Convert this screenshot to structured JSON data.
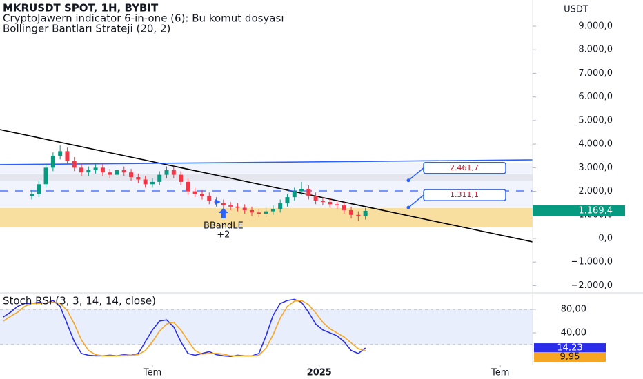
{
  "header": {
    "title": "MKRUSDT SPOT, 1H, BYBIT",
    "indicator": "CryptoJawern indicator 6-in-one  (6): Bu komut dosyası",
    "strategy": "Bollinger Bantları Strateji (20, 2)"
  },
  "chart_data": [
    {
      "type": "candlestick",
      "y_axis_title": "USDT",
      "x": [
        0,
        1,
        2,
        3,
        4,
        5,
        6,
        7,
        8,
        9,
        10,
        11,
        12,
        13,
        14,
        15,
        16,
        17,
        18,
        19,
        20,
        21,
        22,
        23,
        24,
        25,
        26,
        27,
        28,
        29,
        30,
        31,
        32,
        33,
        34,
        35,
        36,
        37,
        38,
        39,
        40,
        41,
        42,
        43,
        44,
        45,
        46,
        47
      ],
      "open": [
        1800,
        1900,
        2300,
        3000,
        3500,
        3700,
        3300,
        3000,
        2800,
        2900,
        3000,
        2800,
        2700,
        2900,
        2800,
        2600,
        2500,
        2300,
        2400,
        2700,
        2900,
        2700,
        2400,
        2000,
        1900,
        1800,
        1600,
        1500,
        1400,
        1350,
        1300,
        1200,
        1100,
        1050,
        1150,
        1250,
        1500,
        1750,
        2000,
        2100,
        1800,
        1600,
        1550,
        1450,
        1400,
        1200,
        1000,
        950
      ],
      "high": [
        2050,
        2450,
        3150,
        3650,
        3950,
        3850,
        3450,
        3150,
        3050,
        3150,
        3150,
        2950,
        3050,
        3050,
        2950,
        2750,
        2650,
        2550,
        2850,
        3050,
        3050,
        2850,
        2550,
        2150,
        2050,
        1950,
        1750,
        1650,
        1550,
        1500,
        1450,
        1350,
        1250,
        1300,
        1400,
        1650,
        1900,
        2150,
        2400,
        2250,
        1950,
        1750,
        1700,
        1600,
        1550,
        1350,
        1150,
        1300
      ],
      "low": [
        1650,
        1750,
        2150,
        2850,
        3350,
        3150,
        2850,
        2650,
        2650,
        2750,
        2650,
        2550,
        2550,
        2650,
        2450,
        2350,
        2150,
        2150,
        2250,
        2550,
        2550,
        2250,
        1850,
        1750,
        1650,
        1450,
        1350,
        1250,
        1200,
        1150,
        1050,
        950,
        900,
        900,
        1000,
        1100,
        1350,
        1600,
        1850,
        1650,
        1450,
        1400,
        1300,
        1250,
        1050,
        850,
        750,
        800
      ],
      "close": [
        1900,
        2300,
        3000,
        3500,
        3700,
        3300,
        3000,
        2800,
        2900,
        3000,
        2800,
        2700,
        2900,
        2800,
        2600,
        2500,
        2300,
        2400,
        2700,
        2900,
        2700,
        2400,
        2000,
        1900,
        1800,
        1600,
        1500,
        1400,
        1350,
        1300,
        1200,
        1100,
        1050,
        1150,
        1250,
        1500,
        1750,
        2000,
        2100,
        1800,
        1600,
        1550,
        1450,
        1400,
        1200,
        1000,
        950,
        1169.4
      ],
      "up_color": "#089981",
      "down_color": "#f23645",
      "last_price": {
        "value": 1169.4,
        "label": "1.169,4"
      },
      "xlim": [
        -4.47,
        70.55
      ],
      "ylim": [
        -2309,
        10111
      ],
      "yticks": [
        {
          "value": 9000,
          "label": "9.000,0"
        },
        {
          "value": 8000,
          "label": "8.000,0"
        },
        {
          "value": 7000,
          "label": "7.000,0"
        },
        {
          "value": 6000,
          "label": "6.000,0"
        },
        {
          "value": 5000,
          "label": "5.000,0"
        },
        {
          "value": 4000,
          "label": "4.000,0"
        },
        {
          "value": 3000,
          "label": "3.000,0"
        },
        {
          "value": 2000,
          "label": "2.000,0"
        },
        {
          "value": 1000,
          "label": "1.000,0"
        },
        {
          "value": 0,
          "label": "0,0"
        },
        {
          "value": -1000,
          "label": "−1.000,0"
        },
        {
          "value": -2000,
          "label": "−2.000,0"
        }
      ],
      "bands": [
        {
          "range": [
            1286,
            3200
          ],
          "color": "#eef2fb"
        },
        {
          "range": [
            2455,
            2718
          ],
          "color": "#e2e2ea"
        },
        {
          "range": [
            468,
            1286
          ],
          "color": "#f8d98e"
        }
      ],
      "trend_lines": [
        {
          "x": [
            -4.47,
            70.55
          ],
          "y": [
            4617,
            -146
          ],
          "color": "#000000",
          "dash": false
        },
        {
          "x": [
            -4.47,
            70.55
          ],
          "y": [
            3127,
            3331
          ],
          "color": "#2962ff",
          "dash": false
        },
        {
          "x": [
            -4.47,
            70.55
          ],
          "y": [
            2016,
            2016
          ],
          "color": "#2962ff",
          "dash": true
        }
      ],
      "levels": [
        {
          "value": 2461.7,
          "label": "2.461,7"
        },
        {
          "value": 1311.1,
          "label": "1.311,1"
        }
      ],
      "signal": {
        "x": 27,
        "text": "BBandLE",
        "count": "+2"
      }
    },
    {
      "type": "line",
      "title": "Stoch RSI (3, 3, 14, 14, close)",
      "x": [
        -4,
        -3,
        -2,
        -1,
        0,
        1,
        2,
        3,
        4,
        5,
        6,
        7,
        8,
        9,
        10,
        11,
        12,
        13,
        14,
        15,
        16,
        17,
        18,
        19,
        20,
        21,
        22,
        23,
        24,
        25,
        26,
        27,
        28,
        29,
        30,
        31,
        32,
        33,
        34,
        35,
        36,
        37,
        38,
        39,
        40,
        41,
        42,
        43,
        44,
        45,
        46,
        47
      ],
      "series": [
        {
          "name": "K",
          "color": "#2a2ee8",
          "values": [
            67,
            75,
            85,
            90,
            90,
            92,
            90,
            95,
            85,
            55,
            25,
            5,
            2,
            1,
            1,
            2,
            1,
            3,
            2,
            5,
            25,
            45,
            60,
            62,
            50,
            25,
            5,
            2,
            5,
            8,
            3,
            1,
            0,
            2,
            1,
            1,
            5,
            35,
            70,
            90,
            95,
            97,
            92,
            75,
            55,
            45,
            40,
            35,
            25,
            10,
            5,
            14.23
          ],
          "last": {
            "value": 14.23,
            "label": "14,23"
          }
        },
        {
          "name": "D",
          "color": "#f5a623",
          "values": [
            60,
            68,
            75,
            85,
            90,
            90,
            91,
            92,
            90,
            78,
            55,
            28,
            10,
            3,
            1,
            1,
            1,
            2,
            2,
            3,
            10,
            25,
            43,
            55,
            58,
            45,
            27,
            10,
            4,
            5,
            5,
            4,
            1,
            1,
            1,
            1,
            2,
            14,
            37,
            65,
            85,
            94,
            95,
            88,
            74,
            58,
            47,
            40,
            33,
            23,
            13,
            9.95
          ],
          "last": {
            "value": 9.95,
            "label": "9,95"
          }
        }
      ],
      "band_range": [
        20,
        80
      ],
      "ylim": [
        -15,
        108
      ],
      "yticks": [
        {
          "value": 80,
          "label": "80,00"
        },
        {
          "value": 40,
          "label": "40,00"
        }
      ],
      "xlim": [
        -4.47,
        70.55
      ],
      "xticks": [
        {
          "value": 17,
          "label": "Tem"
        },
        {
          "value": 40.5,
          "label": "2025"
        },
        {
          "value": 66,
          "label": "Tem"
        }
      ]
    }
  ]
}
